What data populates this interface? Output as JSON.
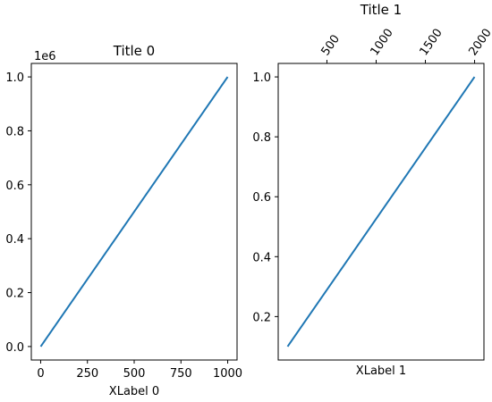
{
  "chart_data": [
    {
      "type": "line",
      "title": "Title 0",
      "xlabel": "XLabel 0",
      "ylabel": "",
      "x_ticks": [
        0,
        250,
        500,
        750,
        1000
      ],
      "x_tick_labels": [
        "0",
        "250",
        "500",
        "750",
        "1000"
      ],
      "y_ticks": [
        0.0,
        0.2,
        0.4,
        0.6,
        0.8,
        1.0
      ],
      "y_tick_labels": [
        "0.0",
        "0.2",
        "0.4",
        "0.6",
        "0.8",
        "1.0"
      ],
      "y_offset_label": "1e6",
      "xlim": [
        -50,
        1050
      ],
      "ylim": [
        -0.05,
        1.05
      ],
      "series": [
        {
          "x": [
            0,
            1000
          ],
          "y": [
            0,
            1.0
          ],
          "color": "#1f77b4"
        }
      ],
      "grid": false
    },
    {
      "type": "line",
      "title": "Title 1",
      "xlabel": "XLabel 1",
      "ylabel": "",
      "x_axis_position": "top",
      "x_tick_rotation": 55,
      "x_ticks": [
        500,
        1000,
        1500,
        2000
      ],
      "x_tick_labels": [
        "500",
        "1000",
        "1500",
        "2000"
      ],
      "y_ticks": [
        0.2,
        0.4,
        0.6,
        0.8,
        1.0
      ],
      "y_tick_labels": [
        "0.2",
        "0.4",
        "0.6",
        "0.8",
        "1.0"
      ],
      "xlim": [
        5,
        2095
      ],
      "ylim": [
        0.055,
        1.045
      ],
      "series": [
        {
          "x": [
            100,
            2000
          ],
          "y": [
            0.1,
            1.0
          ],
          "color": "#1f77b4"
        }
      ],
      "grid": false
    }
  ]
}
